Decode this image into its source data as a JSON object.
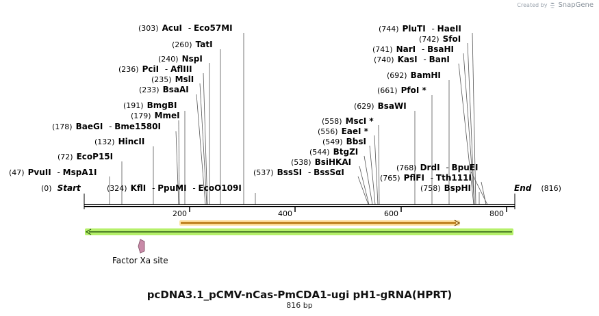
{
  "branding": {
    "created_by": "Created by",
    "product": "SnapGene"
  },
  "map": {
    "title": "pcDNA3.1_pCMV-nCas-PmCDA1-ugi pH1-gRNA(HPRT)",
    "length_label": "816 bp",
    "length_bp": 816,
    "start": {
      "label": "Start",
      "pos": "(0)"
    },
    "end": {
      "label": "End",
      "pos": "(816)"
    },
    "ticks": [
      {
        "value": 200,
        "label": "200"
      },
      {
        "value": 400,
        "label": "400"
      },
      {
        "value": 600,
        "label": "600"
      },
      {
        "value": 800,
        "label": "800"
      }
    ],
    "colors": {
      "backbone": "#000000",
      "forward_feature_fill": "#f5a623",
      "forward_feature_glow": "#fde3a7",
      "reverse_feature_fill": "#4a7d1f",
      "reverse_feature_glow": "#b5f06a",
      "site_feature": "#c98aa8"
    },
    "features": [
      {
        "name": "orange-forward-feature",
        "start": 200,
        "end": 710,
        "direction": "forward"
      },
      {
        "name": "green-reverse-feature",
        "start": 4,
        "end": 812,
        "direction": "reverse"
      },
      {
        "name": "Factor Xa site",
        "start": 104,
        "end": 116,
        "direction": "reverse"
      }
    ],
    "enzymes": [
      {
        "id": "pvuii",
        "pos": "(47)",
        "names": [
          "PvuII",
          "MspA1I"
        ],
        "bp": 47
      },
      {
        "id": "ecop15i",
        "pos": "(72)",
        "names": [
          "EcoP15I"
        ],
        "bp": 72
      },
      {
        "id": "hincii",
        "pos": "(132)",
        "names": [
          "HincII"
        ],
        "bp": 132
      },
      {
        "id": "baegi",
        "pos": "(178)",
        "names": [
          "BaeGI",
          "Bme1580I"
        ],
        "bp": 178
      },
      {
        "id": "mmei",
        "pos": "(179)",
        "names": [
          "MmeI"
        ],
        "bp": 179
      },
      {
        "id": "bmgbi",
        "pos": "(191)",
        "names": [
          "BmgBI"
        ],
        "bp": 191
      },
      {
        "id": "kfli",
        "pos": "(324)",
        "names": [
          "KflI",
          "PpuMI",
          "EcoO109I"
        ],
        "bp": 324
      },
      {
        "id": "bsaai",
        "pos": "(233)",
        "names": [
          "BsaAI"
        ],
        "bp": 233
      },
      {
        "id": "msli",
        "pos": "(235)",
        "names": [
          "MslI"
        ],
        "bp": 235
      },
      {
        "id": "pcli",
        "pos": "(236)",
        "names": [
          "PciI",
          "AflIII"
        ],
        "bp": 236
      },
      {
        "id": "nspi",
        "pos": "(240)",
        "names": [
          "NspI"
        ],
        "bp": 240
      },
      {
        "id": "tati",
        "pos": "(260)",
        "names": [
          "TatI"
        ],
        "bp": 260
      },
      {
        "id": "acui",
        "pos": "(303)",
        "names": [
          "AcuI",
          "Eco57MI"
        ],
        "bp": 303
      },
      {
        "id": "bsssi",
        "pos": "(537)",
        "names": [
          "BssSI",
          "BssSαI"
        ],
        "bp": 537
      },
      {
        "id": "bsihkai",
        "pos": "(538)",
        "names": [
          "BsiHKAI"
        ],
        "bp": 538
      },
      {
        "id": "btgzi",
        "pos": "(544)",
        "names": [
          "BtgZI"
        ],
        "bp": 544
      },
      {
        "id": "bbsi",
        "pos": "(549)",
        "names": [
          "BbsI"
        ],
        "bp": 549
      },
      {
        "id": "eaei",
        "pos": "(556)",
        "names": [
          "EaeI *"
        ],
        "bp": 556
      },
      {
        "id": "msci",
        "pos": "(558)",
        "names": [
          "MscI *"
        ],
        "bp": 558
      },
      {
        "id": "bsawi",
        "pos": "(629)",
        "names": [
          "BsaWI"
        ],
        "bp": 629
      },
      {
        "id": "pfoi",
        "pos": "(661)",
        "names": [
          "PfoI *"
        ],
        "bp": 661
      },
      {
        "id": "bamhi",
        "pos": "(692)",
        "names": [
          "BamHI"
        ],
        "bp": 692
      },
      {
        "id": "kasi",
        "pos": "(740)",
        "names": [
          "KasI",
          "BanI"
        ],
        "bp": 740
      },
      {
        "id": "nari",
        "pos": "(741)",
        "names": [
          "NarI",
          "BsaHI"
        ],
        "bp": 741
      },
      {
        "id": "sfoi",
        "pos": "(742)",
        "names": [
          "SfoI"
        ],
        "bp": 742
      },
      {
        "id": "pluti",
        "pos": "(744)",
        "names": [
          "PluTI",
          "HaeII"
        ],
        "bp": 744
      },
      {
        "id": "drdi",
        "pos": "(768)",
        "names": [
          "DrdI",
          "BpuEI"
        ],
        "bp": 768
      },
      {
        "id": "pflfi",
        "pos": "(765)",
        "names": [
          "PflFI",
          "Tth111I"
        ],
        "bp": 765
      },
      {
        "id": "bsphi",
        "pos": "(758)",
        "names": [
          "BspHI"
        ],
        "bp": 758
      }
    ]
  }
}
